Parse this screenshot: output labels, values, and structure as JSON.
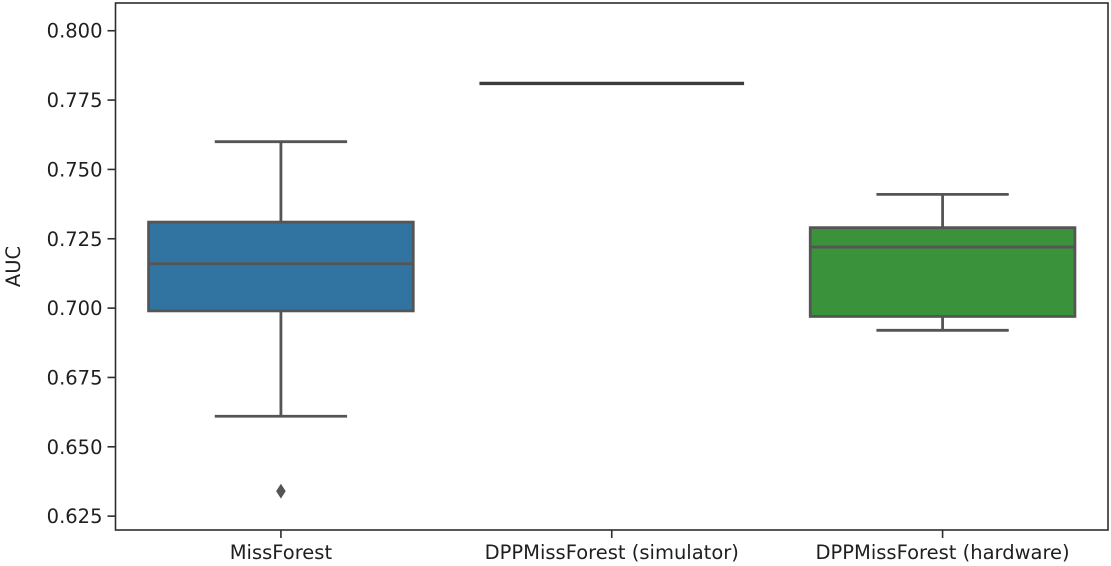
{
  "chart_data": {
    "type": "box",
    "title": "",
    "ylabel": "AUC",
    "xlabel": "",
    "grid": false,
    "ylim": [
      0.62,
      0.81
    ],
    "y_ticks": [
      {
        "value": 0.625,
        "label": "0.625"
      },
      {
        "value": 0.65,
        "label": "0.650"
      },
      {
        "value": 0.675,
        "label": "0.675"
      },
      {
        "value": 0.7,
        "label": "0.700"
      },
      {
        "value": 0.725,
        "label": "0.725"
      },
      {
        "value": 0.75,
        "label": "0.750"
      },
      {
        "value": 0.775,
        "label": "0.775"
      },
      {
        "value": 0.8,
        "label": "0.800"
      }
    ],
    "categories": [
      "MissForest",
      "DPPMissForest (simulator)",
      "DPPMissForest (hardware)"
    ],
    "series": [
      {
        "name": "MissForest",
        "whislo": 0.661,
        "q1": 0.699,
        "med": 0.716,
        "q3": 0.731,
        "whishi": 0.76,
        "fliers": [
          0.634
        ],
        "fill": "#3274a1"
      },
      {
        "name": "DPPMissForest (simulator)",
        "whislo": 0.781,
        "q1": 0.781,
        "med": 0.781,
        "q3": 0.781,
        "whishi": 0.781,
        "fliers": [],
        "fill": null
      },
      {
        "name": "DPPMissForest (hardware)",
        "whislo": 0.692,
        "q1": 0.697,
        "med": 0.722,
        "q3": 0.729,
        "whishi": 0.741,
        "fliers": [],
        "fill": "#3a923a"
      }
    ],
    "colors": {
      "box_line": "#555555",
      "spine": "#2e2e2e",
      "text": "#1f1f1f",
      "blue_fill": "#3274a1",
      "green_fill": "#3a923a"
    }
  }
}
